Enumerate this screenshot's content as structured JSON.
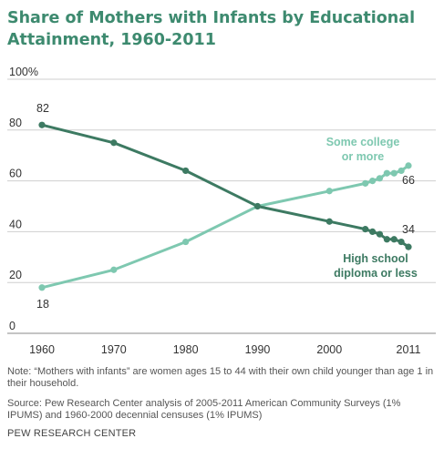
{
  "header": {
    "title": "Share of Mothers with Infants by Educational Attainment, 1960-2011"
  },
  "chart_data": {
    "type": "line",
    "title": "Share of Mothers with Infants by Educational Attainment, 1960-2011",
    "xlabel": "",
    "ylabel": "",
    "xlim": [
      1960,
      2011
    ],
    "ylim": [
      0,
      100
    ],
    "x_ticks": [
      "1960",
      "1970",
      "1980",
      "1990",
      "2000",
      "2011"
    ],
    "y_ticks": [
      "0",
      "20",
      "40",
      "60",
      "80",
      "100%"
    ],
    "grid": true,
    "colors": {
      "high_school": "#3d7a62",
      "some_college": "#7ec8b0"
    },
    "series": [
      {
        "name": "High school diploma or less",
        "x": [
          1960,
          1970,
          1980,
          1990,
          2000,
          2005,
          2006,
          2007,
          2008,
          2009,
          2010,
          2011
        ],
        "values": [
          82,
          75,
          64,
          50,
          44,
          41,
          40,
          39,
          37,
          37,
          36,
          34
        ],
        "start_label": "82",
        "end_label": "34"
      },
      {
        "name": "Some college or more",
        "x": [
          1960,
          1970,
          1980,
          1990,
          2000,
          2005,
          2006,
          2007,
          2008,
          2009,
          2010,
          2011
        ],
        "values": [
          18,
          25,
          36,
          50,
          56,
          59,
          60,
          61,
          63,
          63,
          64,
          66
        ],
        "start_label": "18",
        "end_label": "66"
      }
    ],
    "annotations": {
      "high_school_line1": "High school",
      "high_school_line2": "diploma or less",
      "some_college_line1": "Some college",
      "some_college_line2": "or more"
    }
  },
  "notes": {
    "note": "Note: “Mothers with infants” are women ages 15 to 44 with their own child younger than age 1 in their household.",
    "source": "Source: Pew Research Center analysis of 2005-2011 American Community Surveys (1% IPUMS) and 1960-2000 decennial censuses (1% IPUMS)"
  },
  "footer": {
    "brand": "PEW RESEARCH CENTER"
  }
}
